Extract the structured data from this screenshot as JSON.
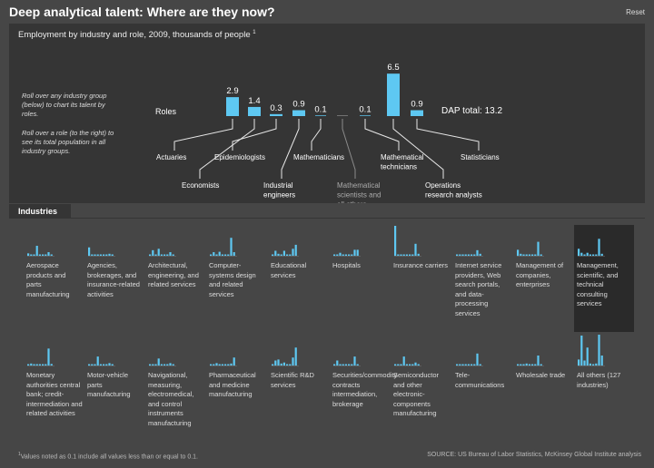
{
  "header": {
    "title": "Deep analytical talent: Where are they now?",
    "reset_label": "Reset"
  },
  "subtitle": "Employment by industry and role, 2009, thousands of people",
  "subtitle_note": "1",
  "instructions": [
    "Roll over any industry group (below) to chart its talent by roles.",
    "Roll over a role (to the right) to see its total population in all industry groups."
  ],
  "roles_label": "Roles",
  "dap_total": "DAP total: 13.2",
  "industries_tab": "Industries",
  "colors": {
    "bar": "#5ec8f2",
    "bar_muted": "#8a8a8a",
    "line": "#e8e8e8",
    "line_muted": "#8a8a8a"
  },
  "chart_data": {
    "type": "bar",
    "title": "Deep analytical talent: Where are they now?",
    "subtitle": "Employment by industry and role, 2009, thousands of people",
    "categories": [
      "Actuaries",
      "Economists",
      "Epidemiologists",
      "Industrial engineers",
      "Mathematicians",
      "Mathematical scientists and all others",
      "Mathematical technicians",
      "Operations research analysts",
      "Statisticians"
    ],
    "values": [
      2.9,
      1.4,
      0.3,
      0.9,
      0.1,
      0,
      0.1,
      6.5,
      0.9
    ],
    "value_labels": [
      "2.9",
      "1.4",
      "0.3",
      "0.9",
      "0.1",
      "",
      "0.1",
      "6.5",
      "0.9"
    ],
    "total_label": "DAP total: 13.2"
  },
  "industries": [
    {
      "label": "Aerospace products and parts manufacturing",
      "values": [
        0.12,
        0.02,
        0.02,
        0.5,
        0.02,
        0.02,
        0.02,
        0.18,
        0.05
      ]
    },
    {
      "label": "Agencies, brokerages, and insurance-related activities",
      "values": [
        0.42,
        0.02,
        0.02,
        0.02,
        0.02,
        0.02,
        0.02,
        0.1,
        0.02
      ]
    },
    {
      "label": "Architectural, engineering, and related services",
      "values": [
        0.02,
        0.28,
        0.02,
        0.35,
        0.02,
        0.02,
        0.02,
        0.18,
        0.02
      ]
    },
    {
      "label": "Computer-systems design and related services",
      "values": [
        0.02,
        0.18,
        0.02,
        0.2,
        0.02,
        0.02,
        0.02,
        0.9,
        0.18
      ]
    },
    {
      "label": "Educational services",
      "values": [
        0.02,
        0.25,
        0.1,
        0.05,
        0.25,
        0.02,
        0.02,
        0.35,
        0.55
      ]
    },
    {
      "label": "Hospitals",
      "values": [
        0.02,
        0.02,
        0.15,
        0.02,
        0.02,
        0.02,
        0.02,
        0.3,
        0.3
      ]
    },
    {
      "label": "Insurance carriers",
      "values": [
        1.5,
        0.05,
        0.02,
        0.02,
        0.02,
        0.02,
        0.02,
        0.6,
        0.1
      ]
    },
    {
      "label": "Internet service providers, Web search portals, and data-processing services",
      "values": [
        0.02,
        0.02,
        0.02,
        0.02,
        0.02,
        0.02,
        0.02,
        0.28,
        0.1
      ]
    },
    {
      "label": "Management of companies, enterprises",
      "values": [
        0.3,
        0.1,
        0.02,
        0.02,
        0.02,
        0.02,
        0.02,
        0.7,
        0.05
      ]
    },
    {
      "label": "Management, scientific, and technical consulting services",
      "values": [
        0.35,
        0.15,
        0.02,
        0.15,
        0.02,
        0.02,
        0.02,
        0.85,
        0.1
      ]
    },
    {
      "label": "Monetary authorities central bank; credit-intermediation and related activities",
      "values": [
        0.05,
        0.1,
        0.02,
        0.02,
        0.02,
        0.02,
        0.02,
        0.85,
        0.08
      ]
    },
    {
      "label": "Motor-vehicle parts manufacturing",
      "values": [
        0.02,
        0.02,
        0.02,
        0.45,
        0.02,
        0.02,
        0.02,
        0.12,
        0.02
      ]
    },
    {
      "label": "Navigational, measuring, electromedical, and control instruments manufacturing",
      "values": [
        0.02,
        0.02,
        0.02,
        0.35,
        0.02,
        0.02,
        0.02,
        0.12,
        0.02
      ]
    },
    {
      "label": "Pharmaceutical and medicine manufacturing",
      "values": [
        0.02,
        0.05,
        0.12,
        0.05,
        0.02,
        0.02,
        0.02,
        0.1,
        0.4
      ]
    },
    {
      "label": "Scientific R&D services",
      "values": [
        0.02,
        0.25,
        0.3,
        0.1,
        0.15,
        0.02,
        0.02,
        0.4,
        0.9
      ]
    },
    {
      "label": "Securities/commodity contracts intermediation, brokerage",
      "values": [
        0.05,
        0.25,
        0.02,
        0.02,
        0.02,
        0.02,
        0.02,
        0.45,
        0.05
      ]
    },
    {
      "label": "Semiconductor and other electronic-components manufacturing",
      "values": [
        0.02,
        0.02,
        0.02,
        0.45,
        0.02,
        0.02,
        0.02,
        0.15,
        0.02
      ]
    },
    {
      "label": "Tele-communications",
      "values": [
        0.02,
        0.05,
        0.02,
        0.05,
        0.02,
        0.02,
        0.02,
        0.6,
        0.05
      ]
    },
    {
      "label": "Wholesale trade",
      "values": [
        0.05,
        0.05,
        0.02,
        0.1,
        0.02,
        0.02,
        0.02,
        0.5,
        0.05
      ]
    },
    {
      "label": "All others (127 industries)",
      "values": [
        0.3,
        1.5,
        0.25,
        0.9,
        0.1,
        0.02,
        0.1,
        1.8,
        0.5
      ]
    }
  ],
  "footnote_mark": "1",
  "footnote": "Values noted as 0.1 include all values less  than or equal to 0.1.",
  "source": "SOURCE: US Bureau of Labor Statistics, McKinsey Global Institute analysis"
}
